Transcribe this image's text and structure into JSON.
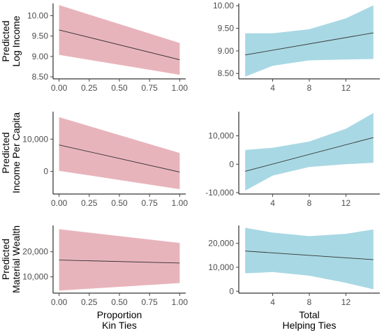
{
  "chart_data": [
    {
      "type": "line",
      "panel": "log-income-vs-kin",
      "ylabel": [
        "Predicted",
        "Log Income"
      ],
      "x": [
        0,
        1
      ],
      "xlim": [
        -0.05,
        1.05
      ],
      "ylim": [
        8.45,
        10.3
      ],
      "xticks": [
        0,
        0.25,
        0.5,
        0.75,
        1
      ],
      "xtick_labels": [
        "0.00",
        "0.25",
        "0.50",
        "0.75",
        "1.00"
      ],
      "yticks": [
        8.5,
        9.0,
        9.5,
        10.0
      ],
      "ytick_labels": [
        "8.50",
        "9.00",
        "9.50",
        "10.00"
      ],
      "fit": [
        9.65,
        8.92
      ],
      "lower": [
        9.04,
        8.55
      ],
      "upper": [
        10.26,
        9.33
      ],
      "fill": "#e8b4bc"
    },
    {
      "type": "line",
      "panel": "log-income-vs-helping",
      "ylabel": [],
      "x": [
        1,
        15
      ],
      "xlim": [
        0.3,
        15.7
      ],
      "ylim": [
        8.38,
        10.05
      ],
      "xticks": [
        4,
        8,
        12
      ],
      "xtick_labels": [
        "4",
        "8",
        "12"
      ],
      "yticks": [
        8.5,
        9.0,
        9.5,
        10.0
      ],
      "ytick_labels": [
        "8.50",
        "9.00",
        "9.50",
        "10.00"
      ],
      "fit": [
        8.91,
        9.4
      ],
      "lower_points": [
        [
          1,
          8.43
        ],
        [
          4,
          8.67
        ],
        [
          8,
          8.79
        ],
        [
          12,
          8.81
        ],
        [
          15,
          8.82
        ]
      ],
      "upper_points": [
        [
          1,
          9.39
        ],
        [
          4,
          9.39
        ],
        [
          8,
          9.48
        ],
        [
          12,
          9.72
        ],
        [
          15,
          10.01
        ]
      ],
      "fill": "#a8d8e4"
    },
    {
      "type": "line",
      "panel": "income-per-capita-vs-kin",
      "ylabel": [
        "Predicted",
        "Income Per Capita"
      ],
      "x": [
        0,
        1
      ],
      "xlim": [
        -0.05,
        1.05
      ],
      "ylim": [
        -7000,
        18500
      ],
      "xticks": [
        0,
        0.25,
        0.5,
        0.75,
        1
      ],
      "xtick_labels": [
        "0.00",
        "0.25",
        "0.50",
        "0.75",
        "1.00"
      ],
      "yticks": [
        0,
        10000
      ],
      "ytick_labels": [
        "0",
        "10,000"
      ],
      "fit": [
        8200,
        -200
      ],
      "lower": [
        200,
        -5500
      ],
      "upper": [
        16800,
        5700
      ],
      "fill": "#e8b4bc"
    },
    {
      "type": "line",
      "panel": "income-per-capita-vs-helping",
      "ylabel": [],
      "x": [
        1,
        15
      ],
      "xlim": [
        0.3,
        15.7
      ],
      "ylim": [
        -10500,
        18500
      ],
      "xticks": [
        4,
        8,
        12
      ],
      "xtick_labels": [
        "4",
        "8",
        "12"
      ],
      "yticks": [
        -10000,
        0,
        10000
      ],
      "ytick_labels": [
        "-10,000",
        "0",
        "10,000"
      ],
      "fit": [
        -2500,
        9400
      ],
      "lower_points": [
        [
          1,
          -9300
        ],
        [
          4,
          -4000
        ],
        [
          8,
          -1000
        ],
        [
          12,
          0
        ],
        [
          15,
          500
        ]
      ],
      "upper_points": [
        [
          1,
          5000
        ],
        [
          4,
          5800
        ],
        [
          8,
          8000
        ],
        [
          12,
          12500
        ],
        [
          15,
          18000
        ]
      ],
      "fill": "#a8d8e4"
    },
    {
      "type": "line",
      "panel": "material-wealth-vs-kin",
      "ylabel": [
        "Predicted",
        "Material Wealth"
      ],
      "x": [
        0,
        1
      ],
      "xlim": [
        -0.05,
        1.05
      ],
      "ylim": [
        3500,
        30500
      ],
      "xticks": [
        0,
        0.25,
        0.5,
        0.75,
        1
      ],
      "xtick_labels": [
        "0.00",
        "0.25",
        "0.50",
        "0.75",
        "1.00"
      ],
      "yticks": [
        10000,
        20000
      ],
      "ytick_labels": [
        "10,000",
        "20,000"
      ],
      "fit": [
        16700,
        15500
      ],
      "lower": [
        4500,
        7500
      ],
      "upper": [
        29000,
        23500
      ],
      "fill": "#e8b4bc",
      "xlabel": [
        "Proportion",
        "Kin Ties"
      ]
    },
    {
      "type": "line",
      "panel": "material-wealth-vs-helping",
      "ylabel": [],
      "x": [
        1,
        15
      ],
      "xlim": [
        0.3,
        15.7
      ],
      "ylim": [
        -800,
        27500
      ],
      "xticks": [
        4,
        8,
        12
      ],
      "xtick_labels": [
        "4",
        "8",
        "12"
      ],
      "yticks": [
        0,
        10000,
        20000
      ],
      "ytick_labels": [
        "0",
        "10,000",
        "20,000"
      ],
      "fit": [
        16800,
        13200
      ],
      "lower_points": [
        [
          1,
          7500
        ],
        [
          4,
          8000
        ],
        [
          8,
          6500
        ],
        [
          12,
          3500
        ],
        [
          15,
          800
        ]
      ],
      "upper_points": [
        [
          1,
          26500
        ],
        [
          4,
          24500
        ],
        [
          8,
          23000
        ],
        [
          12,
          24000
        ],
        [
          15,
          25800
        ]
      ],
      "fill": "#a8d8e4",
      "xlabel": [
        "Total",
        "Helping Ties"
      ]
    }
  ]
}
